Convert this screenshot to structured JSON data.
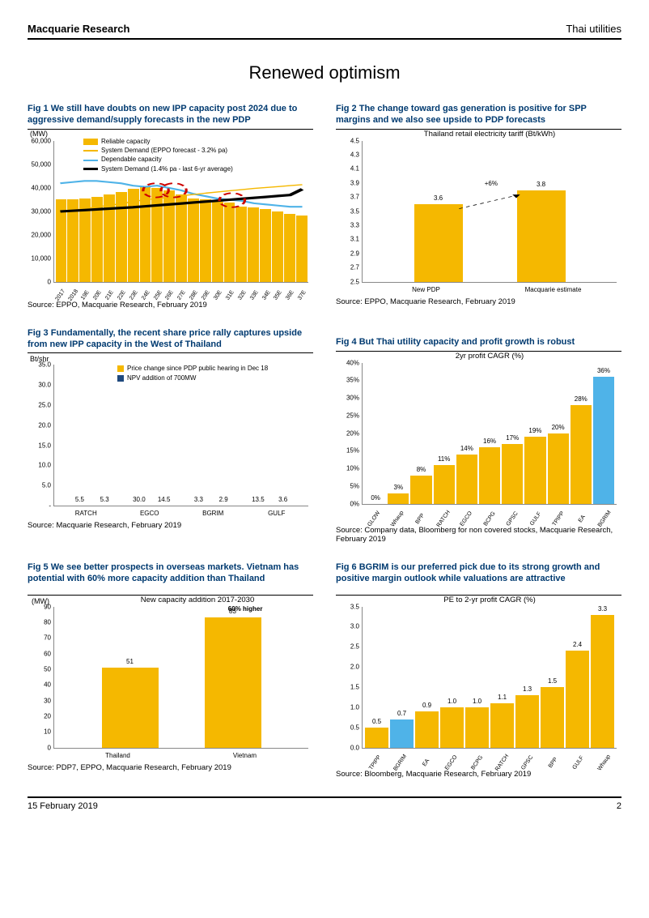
{
  "header": {
    "left": "Macquarie Research",
    "right": "Thai utilities"
  },
  "main_title": "Renewed optimism",
  "footer": {
    "date": "15 February 2019",
    "page": "2"
  },
  "colors": {
    "orange": "#f5b800",
    "blue": "#1f497d",
    "light_blue": "#4fb3e8",
    "dark_blue": "#003a70",
    "highlight": "#4fb3e8",
    "black": "#000000",
    "grid": "#dddddd"
  },
  "fig1": {
    "title": "Fig 1    We still have doubts on new IPP capacity post 2024 due to aggressive demand/supply forecasts in the new PDP",
    "y_unit": "(MW)",
    "ylim": [
      0,
      60000
    ],
    "ytick_step": 10000,
    "categories": [
      "2017",
      "2018",
      "19E",
      "20E",
      "21E",
      "22E",
      "23E",
      "24E",
      "25E",
      "26E",
      "27E",
      "28E",
      "29E",
      "30E",
      "31E",
      "32E",
      "33E",
      "34E",
      "35E",
      "36E",
      "37E"
    ],
    "reliable": [
      35000,
      35200,
      35500,
      36000,
      37000,
      38000,
      39500,
      40500,
      40000,
      39000,
      37000,
      35500,
      35000,
      34000,
      33500,
      32000,
      31500,
      31000,
      30000,
      29000,
      28000
    ],
    "legend": [
      {
        "type": "swatch",
        "color": "#f5b800",
        "label": "Reliable capacity"
      },
      {
        "type": "line",
        "color": "#f5b800",
        "label": "System Demand (EPPO forecast - 3.2% pa)"
      },
      {
        "type": "line",
        "color": "#4fb3e8",
        "label": "Dependable capacity"
      },
      {
        "type": "line",
        "color": "#000000",
        "weight": "bold",
        "label": "System Demand (1.4% pa - last 6-yr average)"
      }
    ],
    "dependable_line": [
      42000,
      42500,
      43000,
      43000,
      42500,
      42000,
      41000,
      40500,
      41000,
      40000,
      39000,
      37500,
      36500,
      35500,
      35000,
      34500,
      33500,
      33000,
      32500,
      32000,
      32000
    ],
    "eppo_line": [
      30000,
      30500,
      31200,
      31900,
      32600,
      33300,
      34200,
      35000,
      35500,
      36000,
      36700,
      37200,
      37800,
      38300,
      38800,
      39300,
      39800,
      40200,
      40600,
      41000,
      41400
    ],
    "avg_line": [
      30000,
      30300,
      30600,
      30900,
      31200,
      31500,
      31800,
      32200,
      32600,
      33000,
      33400,
      33800,
      34200,
      34600,
      35000,
      35400,
      35800,
      36200,
      36600,
      37000,
      39500
    ],
    "source": "Source: EPPO, Macquarie Research, February 2019"
  },
  "fig2": {
    "title": "Fig 2    The change toward gas generation is positive for SPP margins and we also see upside to PDP forecasts",
    "inner_title": "Thailand retail electricity tariff (Bt/kWh)",
    "ylim": [
      2.5,
      4.5
    ],
    "yticks": [
      2.5,
      2.7,
      2.9,
      3.1,
      3.3,
      3.5,
      3.7,
      3.9,
      4.1,
      4.3,
      4.5
    ],
    "categories": [
      "New PDP",
      "Macquarie estimate"
    ],
    "values": [
      3.6,
      3.8
    ],
    "annotation": "+6%",
    "bar_color": "#f5b800",
    "source": "Source: EPPO, Macquarie Research, February 2019"
  },
  "fig3": {
    "title": "Fig 3    Fundamentally, the recent share price rally captures upside from new IPP capacity in the West of Thailand",
    "y_unit": "Bt/shr",
    "ylim": [
      0,
      35
    ],
    "yticks": [
      "-",
      "5.0",
      "10.0",
      "15.0",
      "20.0",
      "25.0",
      "30.0",
      "35.0"
    ],
    "categories": [
      "RATCH",
      "EGCO",
      "BGRIM",
      "GULF"
    ],
    "series": [
      {
        "name": "Price change since PDP public hearing in Dec 18",
        "color": "#f5b800",
        "values": [
          5.5,
          30.0,
          3.3,
          13.5
        ]
      },
      {
        "name": "NPV addition of 700MW",
        "color": "#1f497d",
        "values": [
          5.3,
          14.5,
          2.9,
          3.6
        ]
      }
    ],
    "source": "Source: Macquarie Research, February 2019"
  },
  "fig4": {
    "title": "Fig 4    But Thai utility capacity and profit growth is robust",
    "inner_title": "2yr profit CAGR (%)",
    "ylim": [
      0,
      40
    ],
    "ytick_step": 5,
    "ytick_suffix": "%",
    "categories": [
      "GLOW",
      "Whaup",
      "BPP",
      "RATCH",
      "EGCO",
      "BCPG",
      "GPSC",
      "GULF",
      "TPIPP",
      "EA",
      "BGRIM"
    ],
    "values": [
      0,
      3,
      8,
      11,
      14,
      16,
      17,
      19,
      20,
      28,
      36
    ],
    "highlight_index": 10,
    "bar_color": "#f5b800",
    "highlight_color": "#4fb3e8",
    "source": "Source: Company data, Bloomberg for non covered stocks, Macquarie Research, February 2019"
  },
  "fig5": {
    "title": "Fig 5    We see better prospects in overseas markets. Vietnam has potential with 60% more capacity addition than Thailand",
    "y_unit": "(MW)",
    "inner_title": "New capacity addition 2017-2030",
    "ylim": [
      0,
      90
    ],
    "ytick_step": 10,
    "categories": [
      "Thailand",
      "Vietnam"
    ],
    "values": [
      51,
      83
    ],
    "annotation": "60% higher",
    "bar_color": "#f5b800",
    "source": "Source: PDP7, EPPO, Macquarie Research, February 2019"
  },
  "fig6": {
    "title": "Fig 6    BGRIM is our preferred pick due to its strong growth and positive margin outlook while valuations are attractive",
    "inner_title": "PE to 2-yr profit CAGR (%)",
    "ylim": [
      0,
      3.5
    ],
    "ytick_step": 0.5,
    "categories": [
      "TPIPP",
      "BGRIM",
      "EA",
      "EGCO",
      "BCPG",
      "RATCH",
      "GPSC",
      "BPP",
      "GULF",
      "Whaup"
    ],
    "values": [
      0.5,
      0.7,
      0.9,
      1.0,
      1.0,
      1.1,
      1.3,
      1.5,
      2.4,
      3.3
    ],
    "highlight_index": 1,
    "bar_color": "#f5b800",
    "highlight_color": "#4fb3e8",
    "source": "Source: Bloomberg, Macquarie Research, February 2019"
  }
}
